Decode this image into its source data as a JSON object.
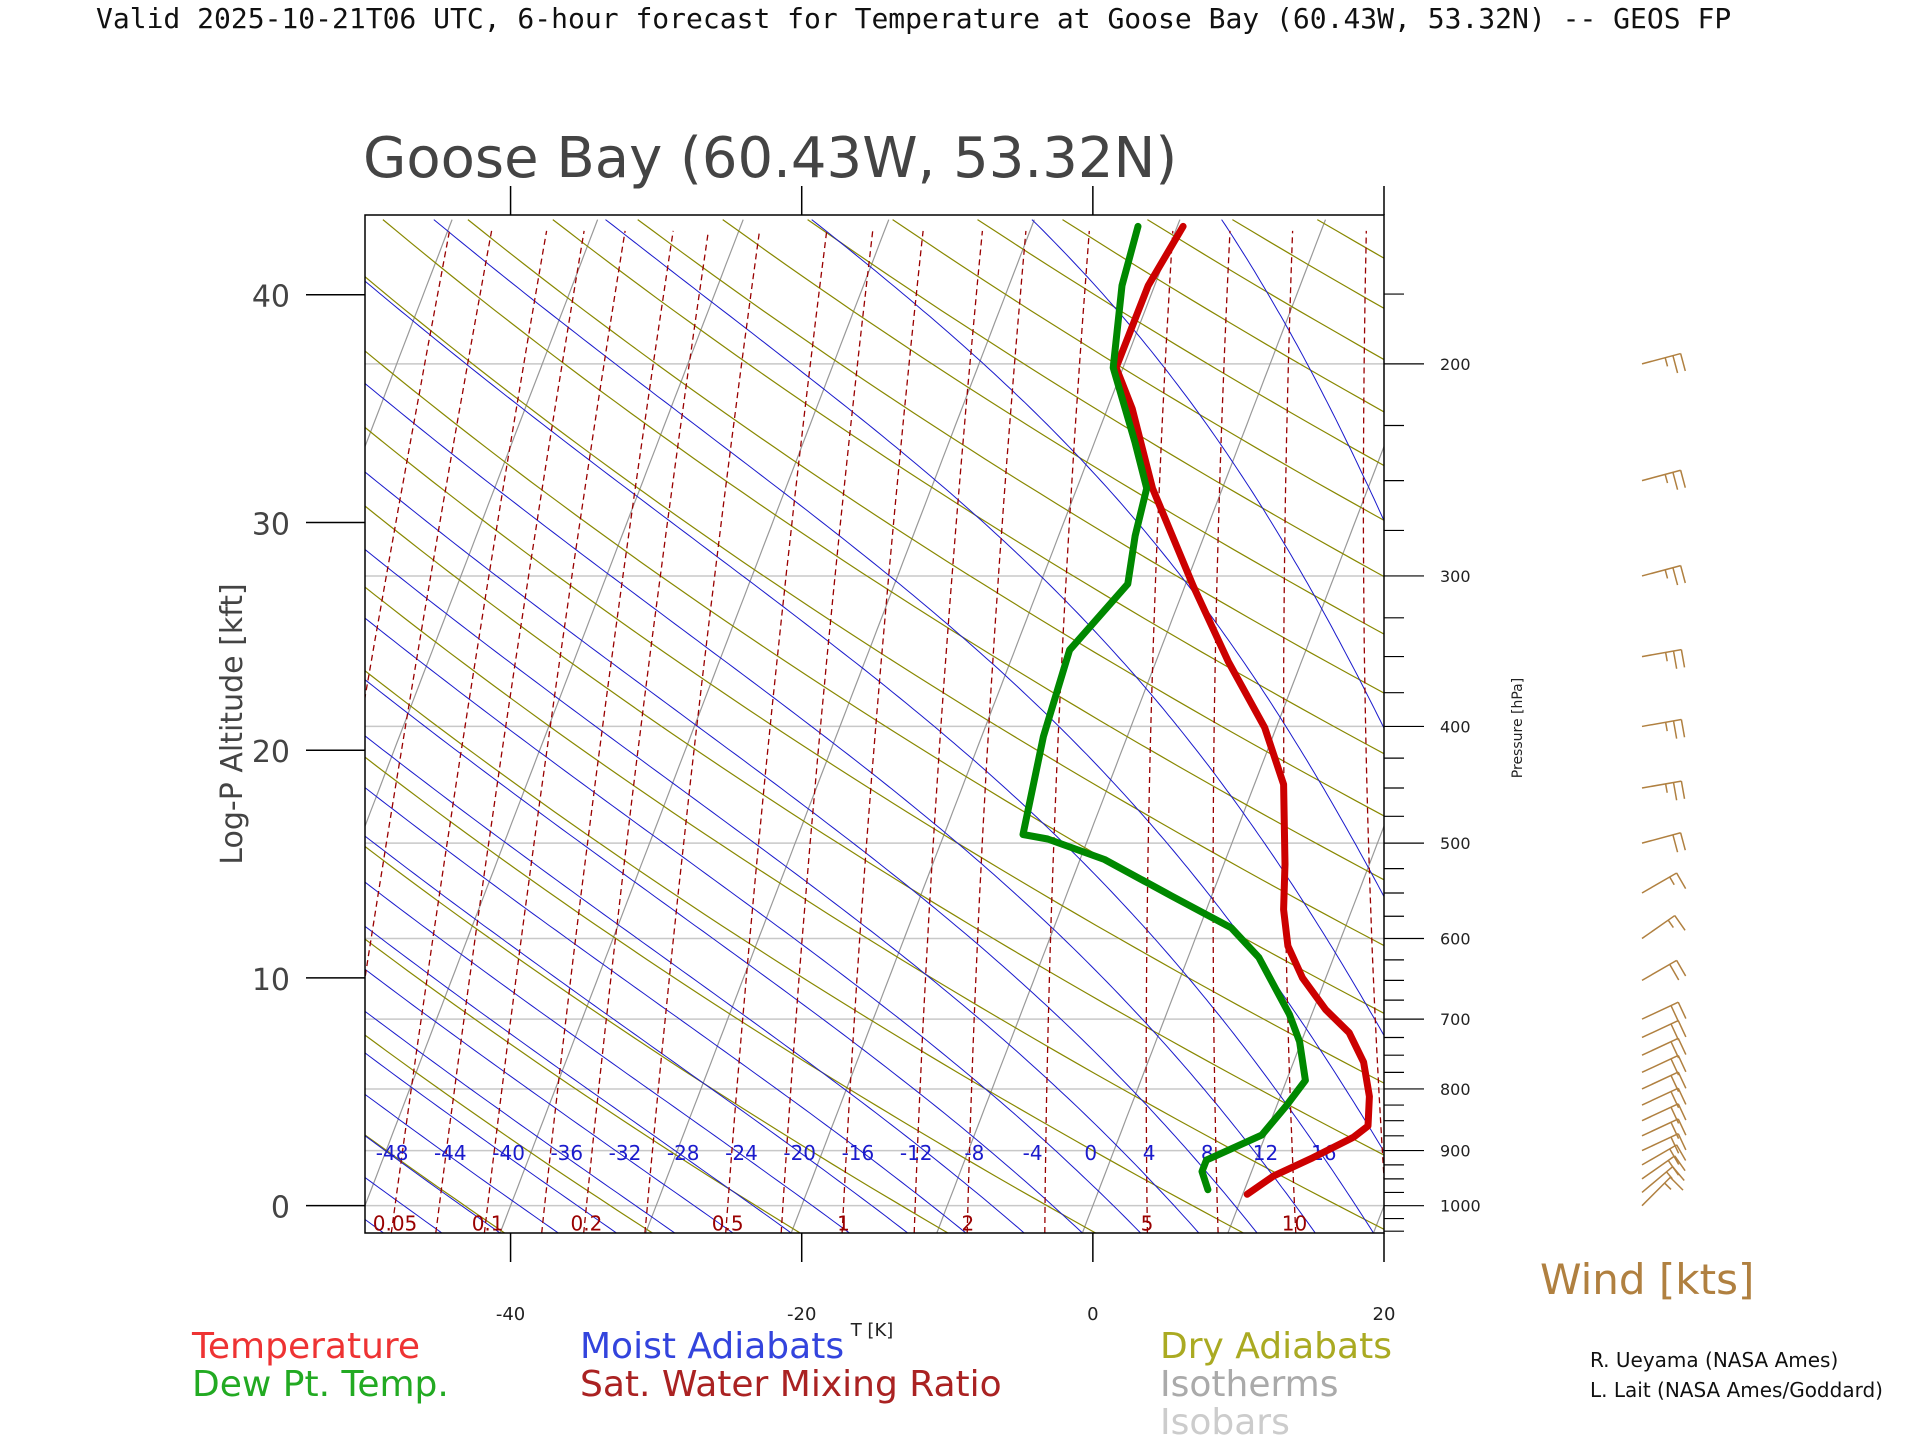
{
  "header": {
    "title": "Valid 2025-10-21T06 UTC, 6-hour forecast for Temperature at Goose Bay (60.43W, 53.32N) -- GEOS FP"
  },
  "chart_data": {
    "type": "skew-t",
    "title": "Goose Bay (60.43W, 53.32N)",
    "xlabel": "T [K]",
    "ylabel": "Log-P Altitude [kft]",
    "y2label": "Pressure [hPa]",
    "wind_label": "Wind [kts]",
    "x_ticks": [
      -40,
      -20,
      0,
      20
    ],
    "y_ticks": [
      0,
      10,
      20,
      30,
      40
    ],
    "pressure_ticks": [
      1000,
      900,
      800,
      700,
      600,
      500,
      400,
      300,
      200
    ],
    "xlim": [
      -50,
      20
    ],
    "ylim": [
      -1.2,
      43.5
    ],
    "moist_adiabat_labels": [
      "-48",
      "-44",
      "-40",
      "-36",
      "-32",
      "-28",
      "-24",
      "-20",
      "-16",
      "-12",
      "-8",
      "-4",
      "0",
      "4",
      "8",
      "12",
      "16"
    ],
    "mixing_ratio_labels": [
      "0.05",
      "0.1",
      "0.2",
      "0.5",
      "1",
      "2",
      "5",
      "10"
    ],
    "series": [
      {
        "name": "Temperature",
        "color": "#cc0000",
        "points": [
          [
            10.6,
            0.5
          ],
          [
            12.4,
            1.3
          ],
          [
            15.1,
            2.1
          ],
          [
            17.9,
            3.0
          ],
          [
            18.9,
            3.5
          ],
          [
            19.0,
            4.8
          ],
          [
            18.6,
            6.3
          ],
          [
            17.6,
            7.6
          ],
          [
            16.0,
            8.6
          ],
          [
            14.4,
            10.0
          ],
          [
            13.4,
            11.4
          ],
          [
            13.1,
            13.0
          ],
          [
            13.2,
            15.0
          ],
          [
            13.1,
            18.5
          ],
          [
            11.8,
            21.0
          ],
          [
            9.3,
            23.9
          ],
          [
            6.9,
            27.2
          ],
          [
            4.1,
            31.5
          ],
          [
            2.7,
            35.0
          ],
          [
            1.6,
            36.8
          ],
          [
            3.8,
            40.4
          ],
          [
            6.2,
            43.0
          ]
        ],
        "label_color": "#ee3333"
      },
      {
        "name": "Dew Pt. Temp.",
        "color": "#008800",
        "points": [
          [
            7.9,
            0.7
          ],
          [
            7.5,
            1.5
          ],
          [
            7.8,
            2.0
          ],
          [
            11.6,
            3.1
          ],
          [
            13.3,
            4.4
          ],
          [
            14.6,
            5.5
          ],
          [
            14.2,
            7.2
          ],
          [
            13.5,
            8.4
          ],
          [
            11.4,
            10.9
          ],
          [
            9.5,
            12.2
          ],
          [
            5.4,
            13.6
          ],
          [
            0.8,
            15.2
          ],
          [
            -3.1,
            16.1
          ],
          [
            -4.8,
            16.3
          ],
          [
            -3.4,
            20.6
          ],
          [
            -1.6,
            24.4
          ],
          [
            2.4,
            27.3
          ],
          [
            2.9,
            29.4
          ],
          [
            3.7,
            31.5
          ],
          [
            2.9,
            33.5
          ],
          [
            1.4,
            36.8
          ],
          [
            2.0,
            40.4
          ],
          [
            3.1,
            43.0
          ]
        ],
        "label_color": "#22aa22"
      }
    ],
    "wind_barbs": [
      {
        "pressure": 1000,
        "speed": 15,
        "direction": 225
      },
      {
        "pressure": 975,
        "speed": 15,
        "direction": 230
      },
      {
        "pressure": 950,
        "speed": 20,
        "direction": 235
      },
      {
        "pressure": 925,
        "speed": 20,
        "direction": 240
      },
      {
        "pressure": 900,
        "speed": 20,
        "direction": 245
      },
      {
        "pressure": 875,
        "speed": 20,
        "direction": 245
      },
      {
        "pressure": 850,
        "speed": 20,
        "direction": 245
      },
      {
        "pressure": 825,
        "speed": 20,
        "direction": 245
      },
      {
        "pressure": 800,
        "speed": 20,
        "direction": 245
      },
      {
        "pressure": 775,
        "speed": 20,
        "direction": 245
      },
      {
        "pressure": 750,
        "speed": 20,
        "direction": 245
      },
      {
        "pressure": 725,
        "speed": 20,
        "direction": 245
      },
      {
        "pressure": 700,
        "speed": 20,
        "direction": 245
      },
      {
        "pressure": 650,
        "speed": 20,
        "direction": 240
      },
      {
        "pressure": 600,
        "speed": 15,
        "direction": 235
      },
      {
        "pressure": 550,
        "speed": 15,
        "direction": 240
      },
      {
        "pressure": 500,
        "speed": 20,
        "direction": 255
      },
      {
        "pressure": 450,
        "speed": 25,
        "direction": 260
      },
      {
        "pressure": 400,
        "speed": 25,
        "direction": 260
      },
      {
        "pressure": 350,
        "speed": 25,
        "direction": 260
      },
      {
        "pressure": 300,
        "speed": 25,
        "direction": 255
      },
      {
        "pressure": 250,
        "speed": 25,
        "direction": 255
      },
      {
        "pressure": 200,
        "speed": 25,
        "direction": 255
      }
    ],
    "legend": [
      {
        "label": "Temperature",
        "color": "#ee3333"
      },
      {
        "label": "Dew Pt. Temp.",
        "color": "#22aa22"
      },
      {
        "label": "Moist Adiabats",
        "color": "#3344dd"
      },
      {
        "label": "Sat. Water Mixing Ratio",
        "color": "#aa2222"
      },
      {
        "label": "Dry Adiabats",
        "color": "#aaaa22"
      },
      {
        "label": "Isotherms",
        "color": "#aaaaaa"
      },
      {
        "label": "Isobars",
        "color": "#cccccc"
      }
    ],
    "colors": {
      "moist": "#1a1acc",
      "dry": "#888800",
      "mixing": "#990000",
      "isotherm": "#999999",
      "isobar": "#c8c8c8",
      "wind": "#b08040"
    }
  },
  "credits": [
    "R. Ueyama (NASA Ames)",
    "L. Lait (NASA Ames/Goddard)"
  ]
}
